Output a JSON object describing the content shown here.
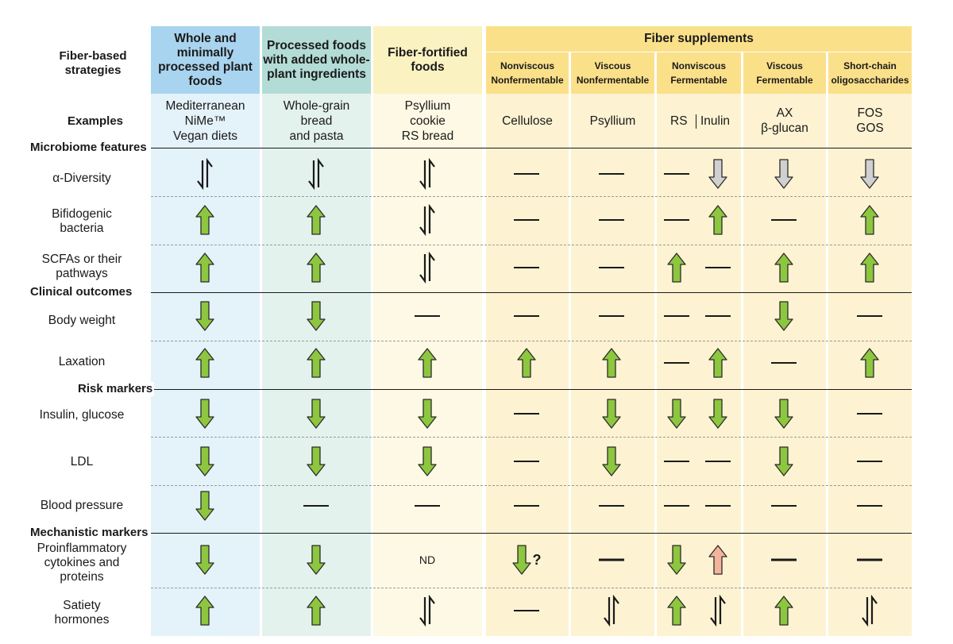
{
  "colors": {
    "blue_header": "#a9d4ef",
    "blue_body": "#e4f2fa",
    "teal_header": "#b3dcd6",
    "teal_body": "#e4f2ee",
    "cream_header": "#fbf2c2",
    "cream_body": "#fef9e4",
    "yellow_header": "#fbe08a",
    "yellow_body": "#fdf3d2",
    "green_arrow": "#8dc63f",
    "gray_arrow": "#d0d0d0",
    "salmon_arrow": "#f4b49b"
  },
  "headers": {
    "strategies_label": "Fiber-based\nstrategies",
    "examples_label": "Examples",
    "whole": "Whole and minimally processed plant foods",
    "processed": "Processed foods with added whole-plant ingredients",
    "fortified": "Fiber-fortified foods",
    "supplements": "Fiber supplements",
    "sub_nvnf": "Nonviscous\nNonfermentable",
    "sub_vnf": "Viscous\nNonfermentable",
    "sub_nvf": "Nonviscous\nFermentable",
    "sub_vf": "Viscous\nFermentable",
    "sub_sco": "Short-chain\noligosaccharides"
  },
  "examples": {
    "whole": "Mediterranean\nNiMe™\nVegan diets",
    "processed": "Whole-grain\nbread\nand pasta",
    "fortified": "Psyllium\ncookie\nRS bread",
    "nvnf": "Cellulose",
    "vnf": "Psyllium",
    "nvf_rs": "RS",
    "nvf_inulin": "Inulin",
    "vf": "AX\nβ-glucan",
    "sco": "FOS\nGOS"
  },
  "sections": {
    "microbiome": "Microbiome features",
    "clinical": "Clinical outcomes",
    "risk": "Risk markers",
    "mechanistic": "Mechanistic markers"
  },
  "legend_codes": {
    "up": "increase",
    "down": "decrease",
    "flat": "no change",
    "mixed": "mixed",
    "gray": "decrease (gray)",
    "salmon": "increase (salmon)",
    "nd": "ND"
  },
  "rows": [
    {
      "label": "α-Diversity",
      "cells": [
        "mixed",
        "mixed",
        "mixed",
        "flat",
        "flat",
        "flat",
        "gray",
        "gray",
        "gray"
      ]
    },
    {
      "label": "Bifidogenic\nbacteria",
      "cells": [
        "up",
        "up",
        "mixed",
        "flat",
        "flat",
        "flat",
        "up",
        "flat",
        "up"
      ]
    },
    {
      "label": "SCFAs or their\npathways",
      "cells": [
        "up",
        "up",
        "mixed",
        "flat",
        "flat",
        "up",
        "flat",
        "up",
        "up"
      ]
    },
    {
      "label": "Body weight",
      "cells": [
        "down",
        "down",
        "flat",
        "flat",
        "flat",
        "flat",
        "flat",
        "down",
        "flat"
      ]
    },
    {
      "label": "Laxation",
      "cells": [
        "up",
        "up",
        "up",
        "up",
        "up",
        "flat",
        "up",
        "flat",
        "up"
      ]
    },
    {
      "label": "Insulin, glucose",
      "cells": [
        "down",
        "down",
        "down",
        "flat",
        "down",
        "down",
        "down",
        "down",
        "flat"
      ]
    },
    {
      "label": "LDL",
      "cells": [
        "down",
        "down",
        "down",
        "flat",
        "down",
        "flat",
        "flat",
        "down",
        "flat"
      ]
    },
    {
      "label": "Blood pressure",
      "cells": [
        "down",
        "flat",
        "flat",
        "flat",
        "flat",
        "flat",
        "flat",
        "flat",
        "flat"
      ]
    },
    {
      "label": "Proinflammatory\ncytokines and\nproteins",
      "cells": [
        "down",
        "down",
        "ND",
        "down?",
        "flatbold",
        "down",
        "salmon",
        "flatbold",
        "flatbold"
      ]
    },
    {
      "label": "Satiety\nhormones",
      "cells": [
        "up",
        "up",
        "mixed",
        "flat",
        "mixed",
        "up",
        "mixed",
        "up",
        "mixed"
      ]
    }
  ]
}
